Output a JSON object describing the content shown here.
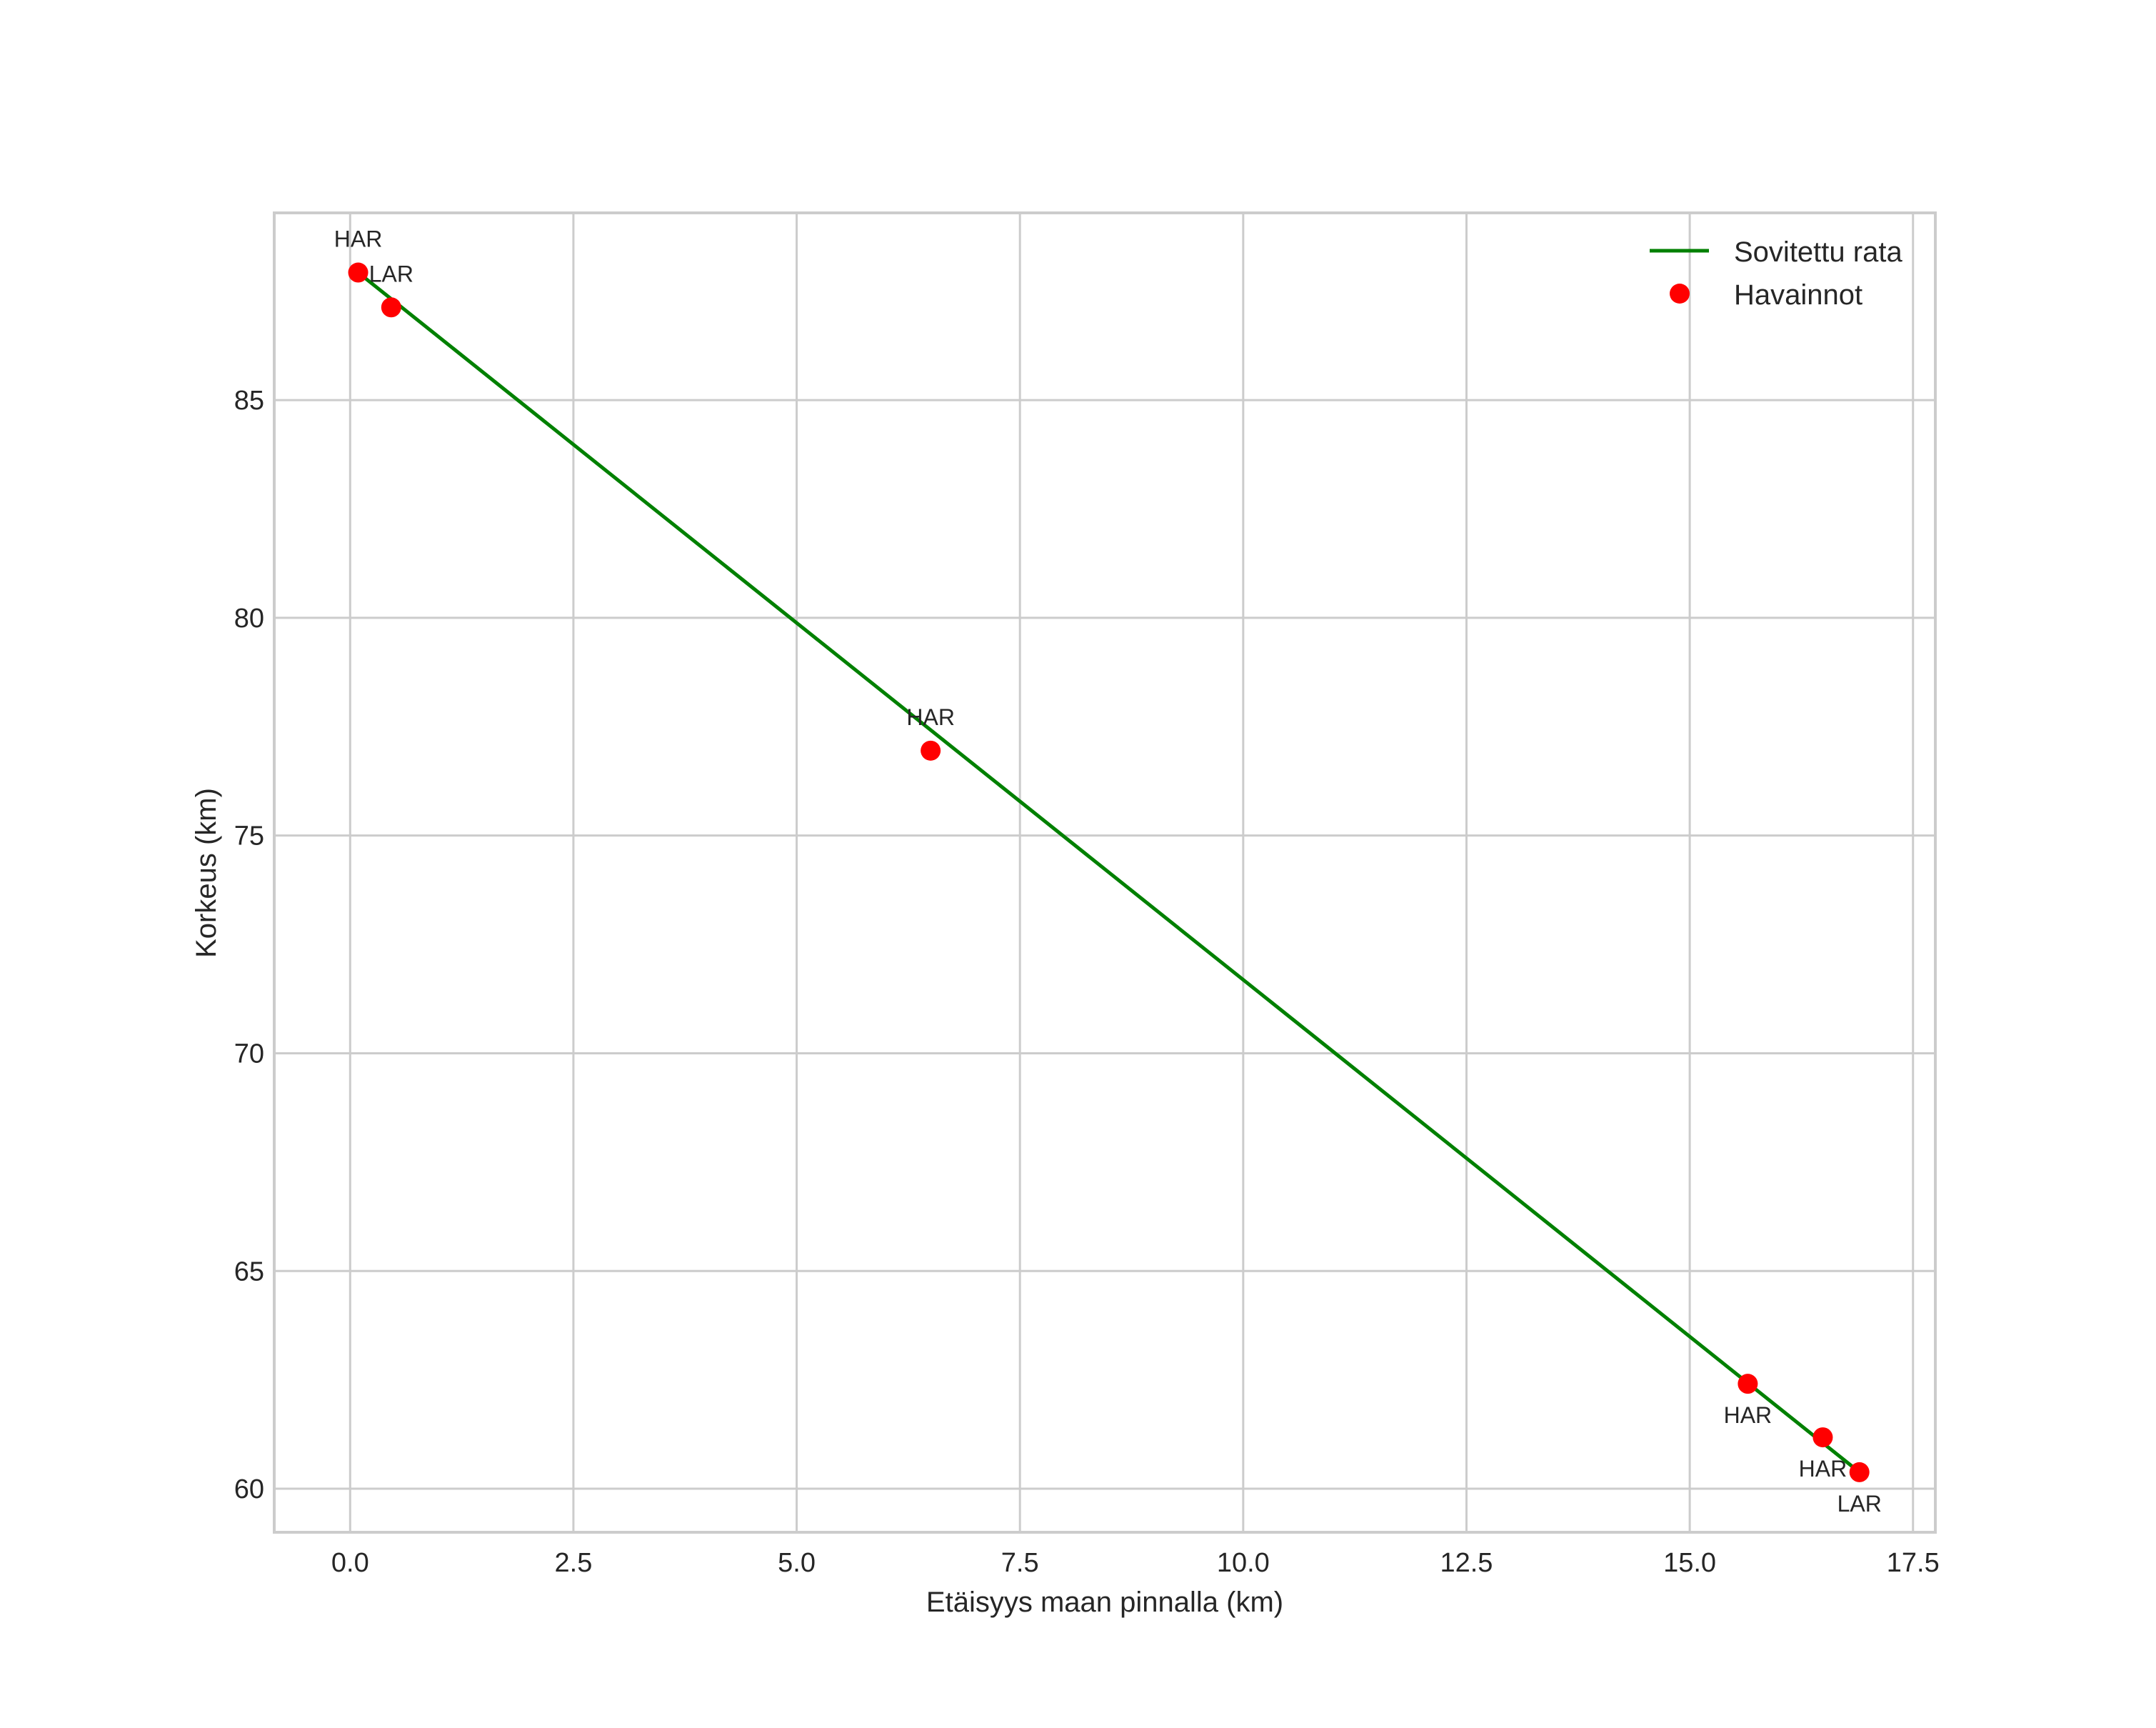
{
  "chart_data": {
    "type": "line",
    "title": "",
    "xlabel": "Etäisyys maan pinnalla (km)",
    "ylabel": "Korkeus (km)",
    "xlim": [
      -0.85,
      17.75
    ],
    "ylim": [
      59.0,
      89.3
    ],
    "xticks": [
      0.0,
      2.5,
      5.0,
      7.5,
      10.0,
      12.5,
      15.0,
      17.5
    ],
    "xtick_labels": [
      "0.0",
      "2.5",
      "5.0",
      "7.5",
      "10.0",
      "12.5",
      "15.0",
      "17.5"
    ],
    "yticks": [
      60,
      65,
      70,
      75,
      80,
      85
    ],
    "ytick_labels": [
      "60",
      "65",
      "70",
      "75",
      "80",
      "85"
    ],
    "grid": true,
    "legend_position": "upper right",
    "series": [
      {
        "name": "Sovitettu rata",
        "kind": "line",
        "color": "#008000",
        "x": [
          0.09,
          16.9
        ],
        "y": [
          87.93,
          60.38
        ]
      },
      {
        "name": "Havainnot",
        "kind": "scatter",
        "color": "#ff0000",
        "points": [
          {
            "x": 0.09,
            "y": 87.93,
            "label": "HAR",
            "label_pos": "above"
          },
          {
            "x": 0.46,
            "y": 87.13,
            "label": "LAR",
            "label_pos": "above"
          },
          {
            "x": 6.5,
            "y": 76.95,
            "label": "HAR",
            "label_pos": "above"
          },
          {
            "x": 15.65,
            "y": 62.41,
            "label": "HAR",
            "label_pos": "below"
          },
          {
            "x": 16.49,
            "y": 61.18,
            "label": "HAR",
            "label_pos": "below"
          },
          {
            "x": 16.9,
            "y": 60.38,
            "label": "LAR",
            "label_pos": "below"
          }
        ]
      }
    ]
  },
  "legend": {
    "items": [
      {
        "label": "Sovitettu rata",
        "marker": "line",
        "color": "#008000"
      },
      {
        "label": "Havainnot",
        "marker": "dot",
        "color": "#ff0000"
      }
    ]
  },
  "colors": {
    "grid": "#cccccc",
    "frame": "#cccccc",
    "text": "#262626"
  }
}
